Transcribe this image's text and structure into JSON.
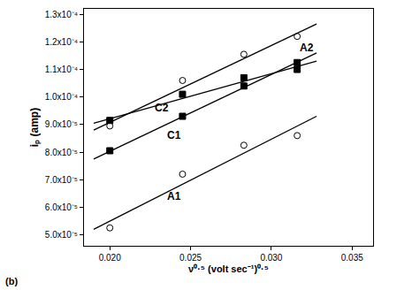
{
  "chart_data": {
    "type": "scatter",
    "x_label": "ν⁰·⁵ (volt sec⁻¹)⁰·⁵",
    "y_label": "iₚ (amp)",
    "xlim": [
      0.0184,
      0.0363
    ],
    "ylim": [
      4.6e-05,
      0.000132
    ],
    "xticks": [
      {
        "value": 0.02,
        "label": "0.020"
      },
      {
        "value": 0.025,
        "label": "0.025"
      },
      {
        "value": 0.03,
        "label": "0.030"
      },
      {
        "value": 0.035,
        "label": "0.035"
      }
    ],
    "yticks": [
      {
        "value": 5e-05,
        "label": "5.0x10⁻⁵"
      },
      {
        "value": 6e-05,
        "label": "6.0x10⁻⁵"
      },
      {
        "value": 7e-05,
        "label": "7.0x10⁻⁵"
      },
      {
        "value": 8e-05,
        "label": "8.0x10⁻⁵"
      },
      {
        "value": 9e-05,
        "label": "9.0x10⁻⁵"
      },
      {
        "value": 0.0001,
        "label": "1.0x10⁻⁴"
      },
      {
        "value": 0.00011,
        "label": "1.1x10⁻⁴"
      },
      {
        "value": 0.00012,
        "label": "1.2x10⁻⁴"
      },
      {
        "value": 0.00013,
        "label": "1.3x10⁻⁴"
      }
    ],
    "grid": false,
    "series": [
      {
        "type": "scatter",
        "marker": "circle-open",
        "color": "#000000",
        "x": [
          0.02,
          0.0245,
          0.0283,
          0.0316
        ],
        "values": [
          5.25e-05,
          7.2e-05,
          8.25e-05,
          8.6e-05
        ]
      },
      {
        "type": "scatter",
        "marker": "circle-open",
        "color": "#000000",
        "x": [
          0.02,
          0.0245,
          0.0283,
          0.0316
        ],
        "values": [
          8.95e-05,
          0.000106,
          0.0001155,
          0.000122
        ]
      },
      {
        "type": "scatter",
        "marker": "square",
        "color": "#000000",
        "x": [
          0.02,
          0.0245,
          0.0283,
          0.0316
        ],
        "values": [
          8.05e-05,
          9.3e-05,
          0.000104,
          0.0001125
        ]
      },
      {
        "type": "scatter",
        "marker": "square",
        "color": "#000000",
        "x": [
          0.02,
          0.0245,
          0.0283,
          0.0316
        ],
        "values": [
          9.15e-05,
          0.000101,
          0.000107,
          0.00011
        ]
      },
      {
        "type": "line",
        "line_style": "solid",
        "color": "#000000",
        "x": [
          0.019,
          0.0328
        ],
        "values": [
          5.2e-05,
          9.3e-05
        ]
      },
      {
        "type": "line",
        "line_style": "solid",
        "color": "#000000",
        "x": [
          0.019,
          0.0328
        ],
        "values": [
          8.8e-05,
          0.0001265
        ]
      },
      {
        "type": "line",
        "line_style": "solid",
        "color": "#000000",
        "x": [
          0.019,
          0.0328
        ],
        "values": [
          7.75e-05,
          0.000116
        ]
      },
      {
        "type": "line",
        "line_style": "solid",
        "color": "#000000",
        "x": [
          0.019,
          0.0328
        ],
        "values": [
          9.05e-05,
          0.000113
        ]
      }
    ],
    "annotations": [
      {
        "text": "A2",
        "x": 0.0322,
        "y": 0.000118
      },
      {
        "text": "C2",
        "x": 0.0232,
        "y": 9.6e-05
      },
      {
        "text": "C1",
        "x": 0.024,
        "y": 8.6e-05
      },
      {
        "text": "A1",
        "x": 0.024,
        "y": 6.4e-05
      },
      {
        "text": "(b)"
      }
    ]
  }
}
